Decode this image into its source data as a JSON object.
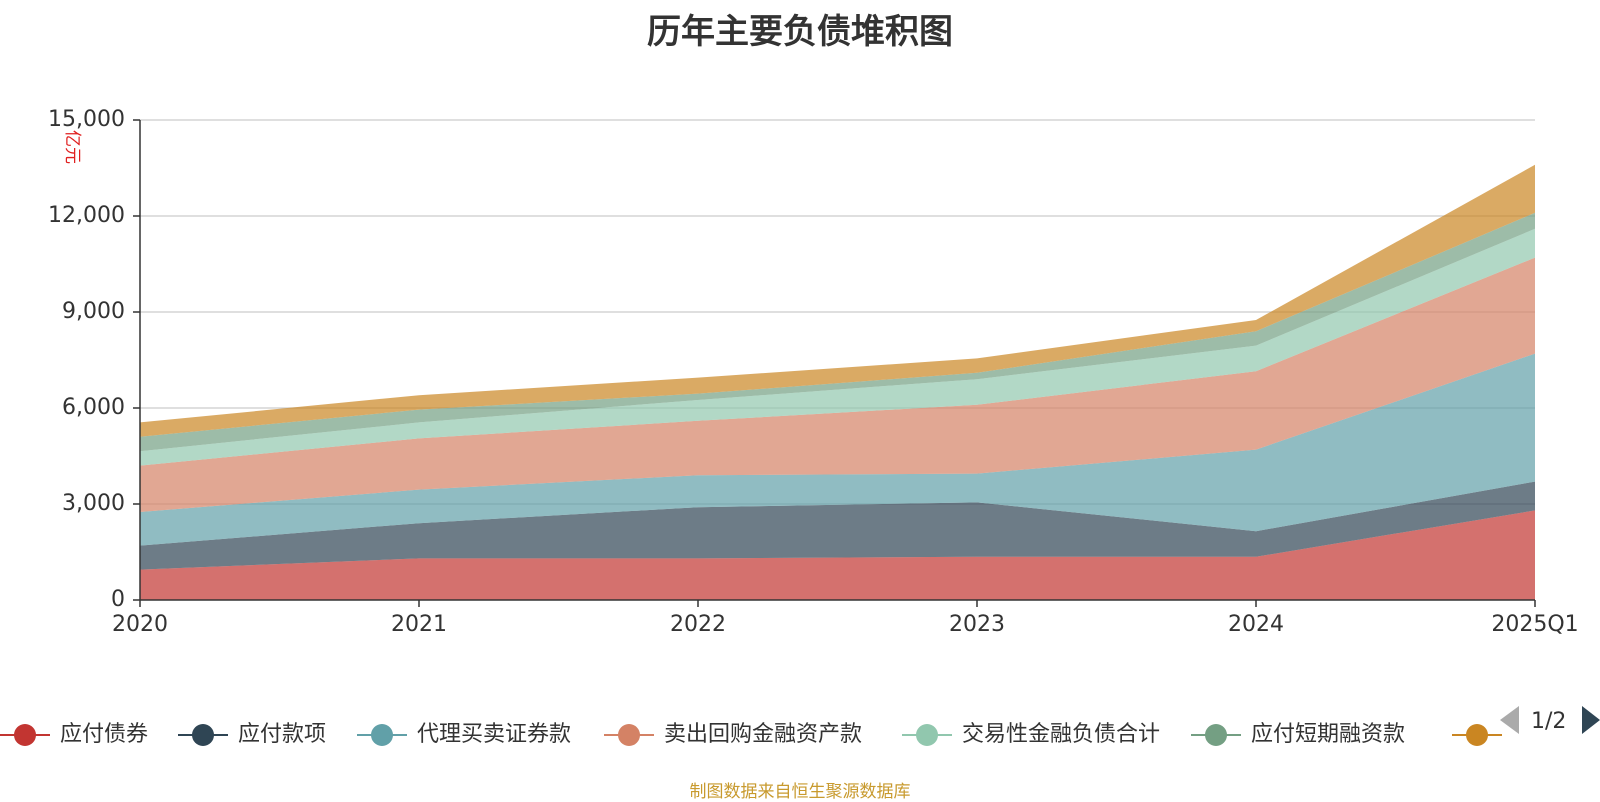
{
  "title": "历年主要负债堆积图",
  "source": "制图数据来自恒生聚源数据库",
  "page_indicator": "1/2",
  "chart_data": {
    "type": "area",
    "stacked": true,
    "categories": [
      "2020",
      "2021",
      "2022",
      "2023",
      "2024",
      "2025Q1"
    ],
    "y_unit": "亿元",
    "ylim": [
      0,
      15000
    ],
    "yticks": [
      0,
      3000,
      6000,
      9000,
      12000,
      15000
    ],
    "ytick_labels": [
      "0",
      "3,000",
      "6,000",
      "9,000",
      "12,000",
      "15,000"
    ],
    "grid": true,
    "legend_position": "bottom",
    "series": [
      {
        "name": "应付债券",
        "color": "#c23531",
        "values": [
          950,
          1300,
          1300,
          1350,
          1350,
          2800
        ]
      },
      {
        "name": "应付款项",
        "color": "#2f4554",
        "values": [
          750,
          1100,
          1600,
          1700,
          800,
          900
        ]
      },
      {
        "name": "代理买卖证券款",
        "color": "#61a0a8",
        "values": [
          1050,
          1050,
          1000,
          900,
          2550,
          4000
        ]
      },
      {
        "name": "卖出回购金融资产款",
        "color": "#d48265",
        "values": [
          1450,
          1600,
          1700,
          2150,
          2450,
          3000
        ]
      },
      {
        "name": "交易性金融负债合计",
        "color": "#91c7ae",
        "values": [
          450,
          500,
          650,
          800,
          800,
          900
        ]
      },
      {
        "name": "应付短期融资款",
        "color": "#749f83",
        "values": [
          450,
          400,
          200,
          200,
          450,
          500
        ]
      },
      {
        "name": "",
        "color": "#ca8622",
        "values": [
          450,
          450,
          500,
          450,
          350,
          1500
        ]
      }
    ]
  }
}
